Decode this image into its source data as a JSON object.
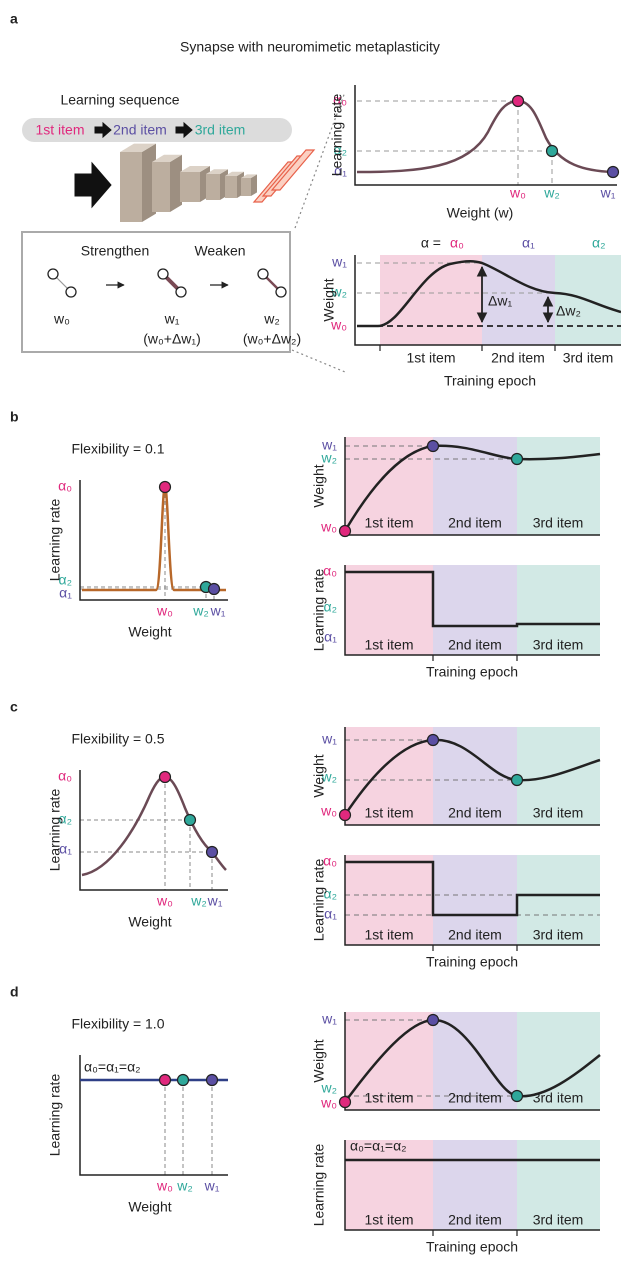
{
  "panel_a": {
    "label": "a",
    "title": "Synapse with neuromimetic metaplasticity",
    "sequence": {
      "title": "Learning sequence",
      "items": [
        "1st item",
        "2nd item",
        "3rd item"
      ]
    },
    "schematic": {
      "steps": [
        "Strengthen",
        "Weaken"
      ],
      "weights": [
        "w₀",
        "w₁",
        "w₂"
      ],
      "updates": [
        "(w₀+Δw₁)",
        "(w₀+Δw₂)"
      ]
    },
    "lr_plot": {
      "ylabel": "Learning rate",
      "xlabel": "Weight (w)",
      "yticks": [
        "α₀",
        "α₂",
        "α₁"
      ],
      "xticks": [
        "w₀",
        "w₂",
        "w₁"
      ]
    },
    "weight_plot": {
      "ylabel": "Weight",
      "xlabel": "Training epoch",
      "rate_prefix": "α =",
      "rates": [
        "α₀",
        "α₁",
        "α₂"
      ],
      "yticks": [
        "w₁",
        "w₂",
        "w₀"
      ],
      "deltas": [
        "Δw₁",
        "Δw₂"
      ],
      "items": [
        "1st item",
        "2nd item",
        "3rd item"
      ]
    }
  },
  "panels": [
    {
      "label": "b",
      "title": "Flexibility = 0.1",
      "lr_plot": {
        "ylabel": "Learning rate",
        "xlabel": "Weight",
        "yticks": [
          "α₀",
          "α₂",
          "α₁"
        ],
        "xticks": [
          "w₀",
          "w₂",
          "w₁"
        ]
      },
      "weight_plot": {
        "ylabel": "Weight",
        "yticks": [
          "w₁",
          "w₂",
          "w₀"
        ],
        "items": [
          "1st item",
          "2nd item",
          "3rd item"
        ]
      },
      "rate_plot": {
        "ylabel": "Learning rate",
        "xlabel": "Training epoch",
        "yticks": [
          "α₀",
          "α₂",
          "α₁"
        ],
        "items": [
          "1st item",
          "2nd item",
          "3rd item"
        ]
      }
    },
    {
      "label": "c",
      "title": "Flexibility = 0.5",
      "lr_plot": {
        "ylabel": "Learning rate",
        "xlabel": "Weight",
        "yticks": [
          "α₀",
          "α₂",
          "α₁"
        ],
        "xticks": [
          "w₀",
          "w₂",
          "w₁"
        ]
      },
      "weight_plot": {
        "ylabel": "Weight",
        "yticks": [
          "w₁",
          "w₂",
          "w₀"
        ],
        "items": [
          "1st item",
          "2nd item",
          "3rd item"
        ]
      },
      "rate_plot": {
        "ylabel": "Learning rate",
        "xlabel": "Training epoch",
        "yticks": [
          "α₀",
          "α₂",
          "α₁"
        ],
        "items": [
          "1st item",
          "2nd item",
          "3rd item"
        ]
      }
    },
    {
      "label": "d",
      "title": "Flexibility = 1.0",
      "lr_plot": {
        "ylabel": "Learning rate",
        "xlabel": "Weight",
        "yticks": [
          "α₀=α₁=α₂"
        ],
        "xticks": [
          "w₀",
          "w₂",
          "w₁"
        ]
      },
      "weight_plot": {
        "ylabel": "Weight",
        "yticks": [
          "w₁",
          "w₂",
          "w₀"
        ],
        "items": [
          "1st item",
          "2nd item",
          "3rd item"
        ]
      },
      "rate_plot": {
        "ylabel": "Learning rate",
        "xlabel": "Training epoch",
        "yticks": [
          "α₀=α₁=α₂"
        ],
        "items": [
          "1st item",
          "2nd item",
          "3rd item"
        ]
      }
    }
  ]
}
